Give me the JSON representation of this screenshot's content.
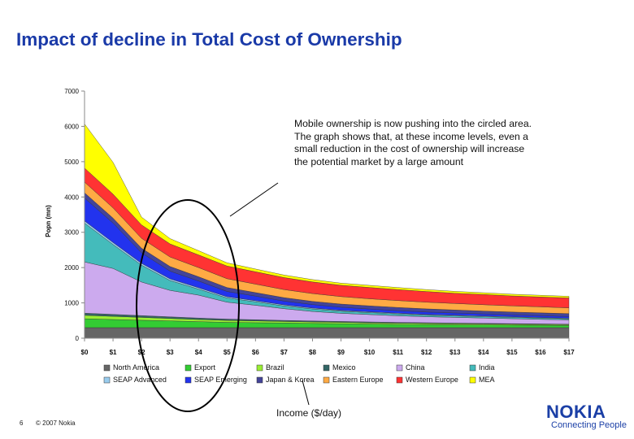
{
  "slide": {
    "title": "Impact of decline in Total Cost of Ownership",
    "page_number": "6",
    "copyright": "© 2007 Nokia",
    "logo_text": "NOKIA",
    "logo_tagline": "Connecting People"
  },
  "annotation": {
    "lines": [
      "Mobile ownership is now pushing into the circled area.",
      "The graph shows that, at these income levels, even a small reduction in the cost of ownership will increase the potential market by a large amount"
    ]
  },
  "chart_data": {
    "type": "area",
    "stacked": true,
    "xlabel": "Income ($/day)",
    "ylabel": "Popn (mn)",
    "ylim": [
      0,
      7000
    ],
    "yticks": [
      "0",
      "1000",
      "2000",
      "3000",
      "4000",
      "5000",
      "6000",
      "7000"
    ],
    "categories": [
      "$0",
      "$1",
      "$2",
      "$3",
      "$4",
      "$5",
      "$6",
      "$7",
      "$8",
      "$9",
      "$10",
      "$11",
      "$12",
      "$13",
      "$14",
      "$15",
      "$16",
      "$17"
    ],
    "grid": false,
    "legend_position": "bottom",
    "highlight": "ellipse around $2-$4",
    "series": [
      {
        "name": "North America",
        "color": "#666666",
        "values": [
          300,
          300,
          300,
          300,
          300,
          300,
          300,
          300,
          300,
          300,
          300,
          300,
          300,
          300,
          300,
          300,
          300,
          300
        ]
      },
      {
        "name": "Export",
        "color": "#33cc33",
        "values": [
          250,
          230,
          210,
          190,
          170,
          150,
          140,
          130,
          120,
          110,
          100,
          90,
          85,
          80,
          75,
          70,
          65,
          60
        ]
      },
      {
        "name": "Brazil",
        "color": "#99ee33",
        "values": [
          100,
          90,
          80,
          70,
          60,
          55,
          50,
          45,
          40,
          38,
          36,
          34,
          32,
          30,
          28,
          26,
          24,
          22
        ]
      },
      {
        "name": "Mexico",
        "color": "#336666",
        "values": [
          60,
          55,
          50,
          45,
          40,
          35,
          32,
          30,
          28,
          26,
          24,
          22,
          20,
          19,
          18,
          17,
          16,
          15
        ]
      },
      {
        "name": "China",
        "color": "#ccaaee",
        "values": [
          1450,
          1300,
          950,
          750,
          650,
          480,
          410,
          330,
          270,
          230,
          210,
          190,
          170,
          160,
          150,
          140,
          130,
          120
        ]
      },
      {
        "name": "India",
        "color": "#44bbbb",
        "values": [
          1100,
          680,
          480,
          280,
          170,
          120,
          100,
          80,
          70,
          60,
          55,
          50,
          45,
          42,
          40,
          38,
          36,
          34
        ]
      },
      {
        "name": "SEAP Advanced",
        "color": "#99ccee",
        "values": [
          60,
          55,
          50,
          45,
          40,
          35,
          30,
          28,
          26,
          24,
          22,
          20,
          19,
          18,
          17,
          16,
          15,
          14
        ]
      },
      {
        "name": "SEAP Emerging",
        "color": "#2233ee",
        "values": [
          650,
          550,
          300,
          220,
          190,
          150,
          130,
          110,
          100,
          90,
          80,
          75,
          70,
          65,
          60,
          55,
          52,
          50
        ]
      },
      {
        "name": "Japan & Korea",
        "color": "#444499",
        "values": [
          150,
          140,
          130,
          130,
          120,
          110,
          100,
          95,
          90,
          90,
          90,
          90,
          90,
          85,
          80,
          80,
          80,
          80
        ]
      },
      {
        "name": "Eastern Europe",
        "color": "#ffaa44",
        "values": [
          300,
          290,
          280,
          270,
          260,
          250,
          240,
          230,
          220,
          210,
          200,
          195,
          190,
          185,
          180,
          175,
          170,
          165
        ]
      },
      {
        "name": "Western Europe",
        "color": "#ff3333",
        "values": [
          400,
          390,
          380,
          370,
          360,
          360,
          350,
          340,
          330,
          320,
          320,
          310,
          300,
          290,
          290,
          280,
          280,
          280
        ]
      },
      {
        "name": "MEA",
        "color": "#ffff00",
        "values": [
          1250,
          900,
          220,
          150,
          120,
          90,
          78,
          72,
          66,
          62,
          60,
          58,
          56,
          53,
          50,
          49,
          48,
          47
        ]
      }
    ]
  }
}
